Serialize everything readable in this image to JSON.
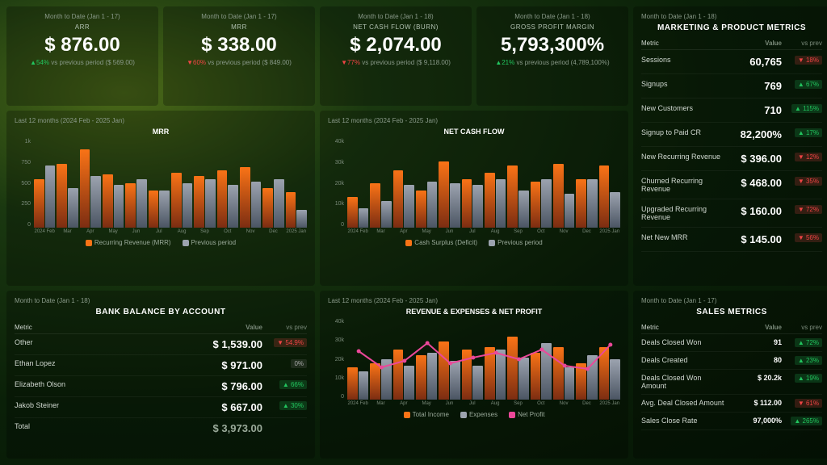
{
  "kpis": [
    {
      "period": "Month to Date (Jan 1 - 17)",
      "label": "ARR",
      "value": "$ 876.00",
      "dir": "up",
      "pct": "54%",
      "prev": "vs previous period ($ 569.00)"
    },
    {
      "period": "Month to Date (Jan 1 - 17)",
      "label": "MRR",
      "value": "$ 338.00",
      "dir": "dn",
      "pct": "60%",
      "prev": "vs previous period ($ 849.00)"
    },
    {
      "period": "Month to Date (Jan 1 - 18)",
      "label": "NET CASH FLOW (BURN)",
      "value": "$ 2,074.00",
      "dir": "dn",
      "pct": "77%",
      "prev": "vs previous period ($ 9,118.00)"
    },
    {
      "period": "Month to Date (Jan 1 - 18)",
      "label": "GROSS PROFIT MARGIN",
      "value": "5,793,300%",
      "dir": "up",
      "pct": "21%",
      "prev": "vs previous period (4,789,100%)"
    }
  ],
  "mrrChart": {
    "period": "Last 12 months (2024 Feb - 2025 Jan)",
    "title": "MRR",
    "yticks": [
      "1k",
      "750",
      "500",
      "250",
      "0"
    ],
    "months": [
      "2024 Feb",
      "Mar",
      "Apr",
      "May",
      "Jun",
      "Jul",
      "Aug",
      "Sep",
      "Oct",
      "Nov",
      "Dec",
      "2025 Jan"
    ],
    "a": [
      55,
      72,
      88,
      60,
      50,
      42,
      62,
      58,
      65,
      68,
      45,
      40
    ],
    "b": [
      70,
      45,
      58,
      48,
      55,
      42,
      50,
      55,
      48,
      52,
      55,
      20
    ],
    "legendA": "Recurring Revenue (MRR)",
    "legendB": "Previous period"
  },
  "ncfChart": {
    "period": "Last 12 months (2024 Feb - 2025 Jan)",
    "title": "NET CASH FLOW",
    "yticks": [
      "40k",
      "30k",
      "20k",
      "10k",
      "0"
    ],
    "months": [
      "2024 Feb",
      "Mar",
      "Apr",
      "May",
      "Jun",
      "Jul",
      "Aug",
      "Sep",
      "Oct",
      "Nov",
      "Dec",
      "2025 Jan"
    ],
    "a": [
      35,
      50,
      65,
      42,
      75,
      55,
      62,
      70,
      52,
      72,
      55,
      70
    ],
    "b": [
      22,
      30,
      48,
      52,
      50,
      48,
      55,
      42,
      55,
      38,
      55,
      40
    ],
    "legendA": "Cash Surplus (Deficit)",
    "legendB": "Previous period"
  },
  "revChart": {
    "period": "Last 12 months (2024 Feb - 2025 Jan)",
    "title": "REVENUE & EXPENSES & NET PROFIT",
    "yticks": [
      "40k",
      "30k",
      "20k",
      "10k",
      "0"
    ],
    "months": [
      "2024 Feb",
      "Mar",
      "Apr",
      "May",
      "Jun",
      "Jul",
      "Aug",
      "Sep",
      "Oct",
      "Nov",
      "Dec",
      "2025 Jan"
    ],
    "a": [
      40,
      45,
      62,
      55,
      72,
      62,
      65,
      78,
      58,
      65,
      45,
      65
    ],
    "b": [
      35,
      50,
      42,
      58,
      48,
      42,
      62,
      52,
      70,
      40,
      55,
      50
    ],
    "line": [
      60,
      40,
      48,
      70,
      45,
      52,
      58,
      50,
      62,
      42,
      38,
      68
    ],
    "legendA": "Total Income",
    "legendB": "Expenses",
    "legendC": "Net Profit"
  },
  "bank": {
    "period": "Month to Date (Jan 1 - 18)",
    "title": "BANK BALANCE BY ACCOUNT",
    "hdr": {
      "c1": "Metric",
      "c2": "Value",
      "c3": "vs prev"
    },
    "rows": [
      {
        "c1": "Other",
        "c2": "$ 1,539.00",
        "dir": "dn",
        "pct": "54.9%"
      },
      {
        "c1": "Ethan Lopez",
        "c2": "$ 971.00",
        "dir": "n",
        "pct": "0%"
      },
      {
        "c1": "Elizabeth Olson",
        "c2": "$ 796.00",
        "dir": "up",
        "pct": "66%"
      },
      {
        "c1": "Jakob Steiner",
        "c2": "$ 667.00",
        "dir": "up",
        "pct": "30%"
      }
    ],
    "totalLabel": "Total",
    "totalValue": "$ 3,973.00"
  },
  "marketing": {
    "period": "Month to Date (Jan 1 - 18)",
    "title": "MARKETING & PRODUCT METRICS",
    "hdr": {
      "c1": "Metric",
      "c2": "Value",
      "c3": "vs prev"
    },
    "rows": [
      {
        "c1": "Sessions",
        "c2": "60,765",
        "dir": "dn",
        "pct": "18%"
      },
      {
        "c1": "Signups",
        "c2": "769",
        "dir": "up",
        "pct": "67%"
      },
      {
        "c1": "New Customers",
        "c2": "710",
        "dir": "up",
        "pct": "115%"
      },
      {
        "c1": "Signup to Paid CR",
        "c2": "82,200%",
        "dir": "up",
        "pct": "17%"
      },
      {
        "c1": "New Recurring Revenue",
        "c2": "$ 396.00",
        "dir": "dn",
        "pct": "12%"
      },
      {
        "c1": "Churned Recurring Revenue",
        "c2": "$ 468.00",
        "dir": "dn",
        "pct": "35%"
      },
      {
        "c1": "Upgraded Recurring Revenue",
        "c2": "$ 160.00",
        "dir": "dn",
        "pct": "72%"
      },
      {
        "c1": "Net New MRR",
        "c2": "$ 145.00",
        "dir": "dn",
        "pct": "56%"
      }
    ]
  },
  "sales": {
    "period": "Month to Date (Jan 1 - 17)",
    "title": "SALES METRICS",
    "hdr": {
      "c1": "Metric",
      "c2": "Value",
      "c3": "vs prev"
    },
    "rows": [
      {
        "c1": "Deals Closed Won",
        "c2": "91",
        "dir": "up",
        "pct": "72%"
      },
      {
        "c1": "Deals Created",
        "c2": "80",
        "dir": "up",
        "pct": "23%"
      },
      {
        "c1": "Deals Closed Won Amount",
        "c2": "$ 20.2k",
        "dir": "up",
        "pct": "19%"
      },
      {
        "c1": "Avg. Deal Closed Amount",
        "c2": "$ 112.00",
        "dir": "dn",
        "pct": "61%"
      },
      {
        "c1": "Sales Close Rate",
        "c2": "97,000%",
        "dir": "up",
        "pct": "265%"
      }
    ]
  },
  "colors": {
    "up": "#22c55e",
    "dn": "#ef4444",
    "barA": "#f97316",
    "barB": "#9ca3af",
    "line": "#ec4899"
  }
}
